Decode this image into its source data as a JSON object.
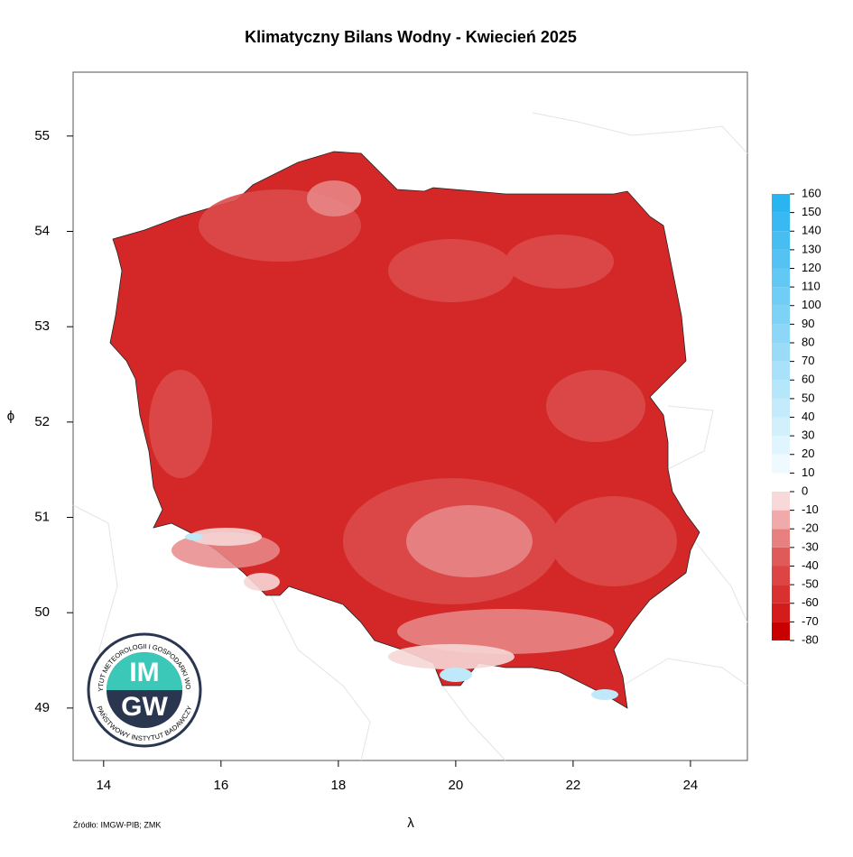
{
  "title": "Klimatyczny Bilans Wodny - Kwiecień 2025",
  "x_axis": {
    "label": "λ",
    "lim": [
      13.48,
      24.97
    ],
    "ticks": [
      14,
      16,
      18,
      20,
      22,
      24
    ]
  },
  "y_axis": {
    "label": "ϕ",
    "lim": [
      48.45,
      55.67
    ],
    "ticks": [
      49,
      50,
      51,
      52,
      53,
      54,
      55
    ]
  },
  "colorbar": {
    "lim": [
      -80,
      160
    ],
    "ticks": [
      -80,
      -70,
      -60,
      -50,
      -40,
      -30,
      -20,
      -10,
      0,
      10,
      20,
      30,
      40,
      50,
      60,
      70,
      80,
      90,
      100,
      110,
      120,
      130,
      140,
      150,
      160
    ],
    "colors": [
      "#c80000",
      "#d41c1c",
      "#d93030",
      "#dd4545",
      "#e05a5a",
      "#e88080",
      "#f0aaaa",
      "#f8d8d8",
      "#ffffff",
      "#eefaff",
      "#e0f5fd",
      "#d2f0fc",
      "#c4ebfb",
      "#b6e6fa",
      "#a8e1f9",
      "#9adcf8",
      "#8cd7f7",
      "#7ed2f6",
      "#70cdf5",
      "#62c8f4",
      "#54c3f3",
      "#46bef2",
      "#38b9f1",
      "#2ab4f0"
    ]
  },
  "logo": {
    "top": "IM",
    "bottom": "GW",
    "ring_top": "INSTYTUT METEOROLOGII I GOSPODARKI WODNEJ",
    "ring_bottom": "PAŃSTWOWY INSTYTUT BADAWCZY"
  },
  "source": "Źródło: IMGW-PIB; ZMK"
}
